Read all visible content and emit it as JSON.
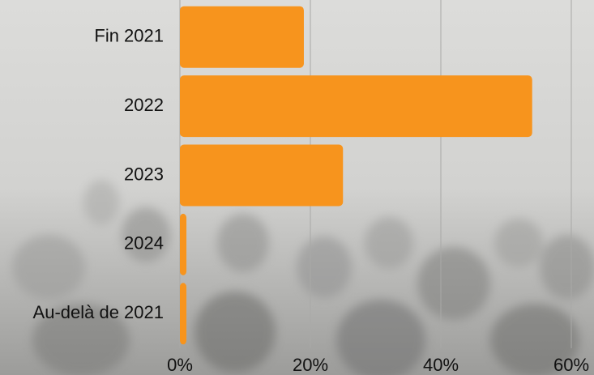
{
  "chart_data": {
    "type": "bar",
    "orientation": "horizontal",
    "categories": [
      "Fin 2021",
      "2022",
      "2023",
      "2024",
      "Au-delà de 2021"
    ],
    "values": [
      19,
      54,
      25,
      1,
      1
    ],
    "color": "#f7941d",
    "xlim": [
      0,
      60
    ],
    "xticks": [
      {
        "value": 0,
        "label": "0%"
      },
      {
        "value": 20,
        "label": "20%"
      },
      {
        "value": 40,
        "label": "40%"
      },
      {
        "value": 60,
        "label": "60%"
      }
    ],
    "grid": true
  }
}
